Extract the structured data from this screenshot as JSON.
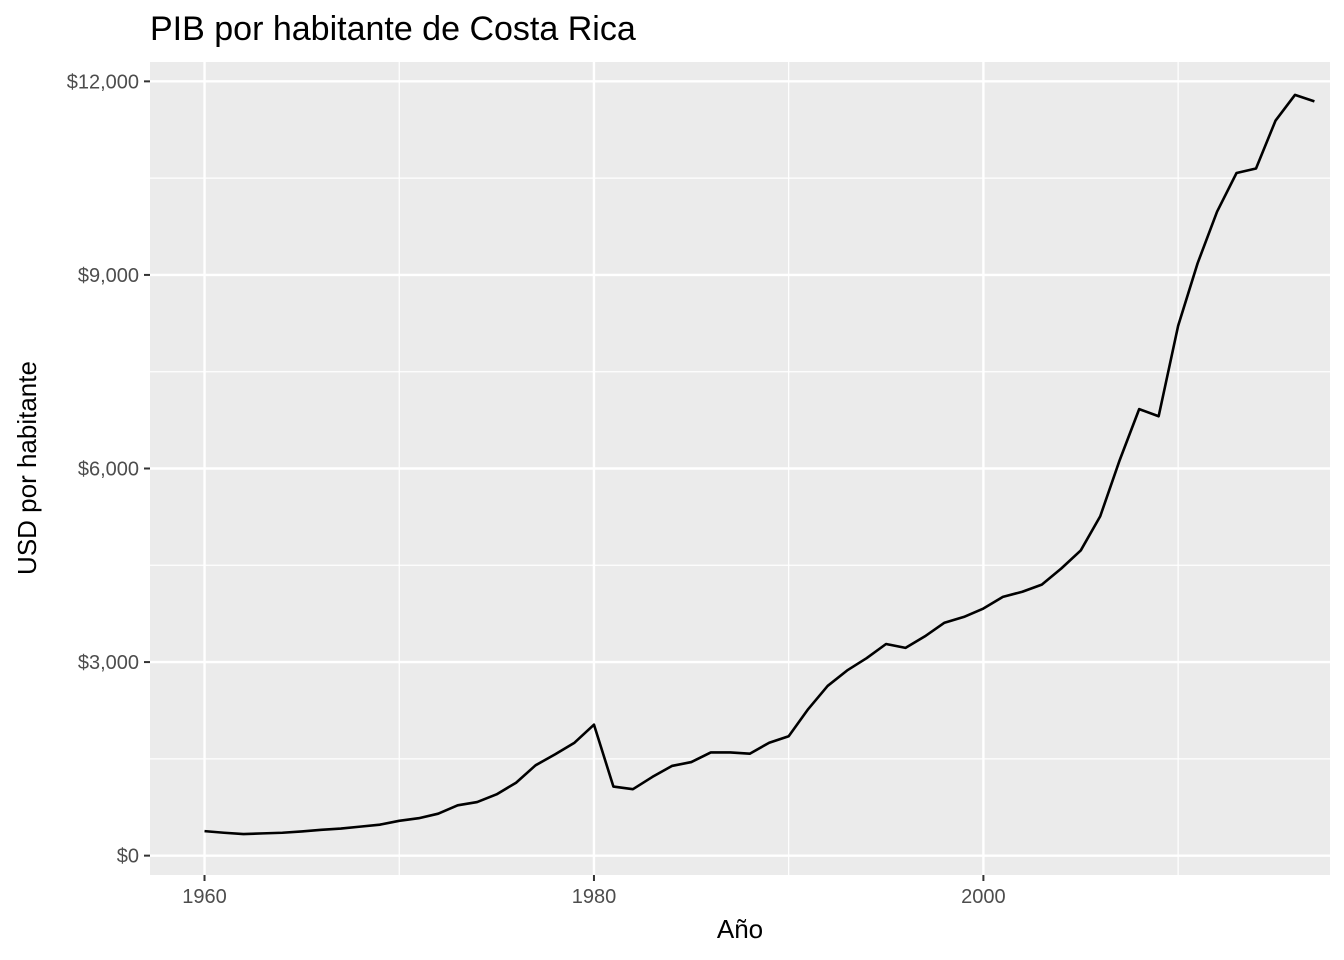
{
  "chart_data": {
    "type": "line",
    "title": "PIB por habitante de Costa Rica",
    "xlabel": "Año",
    "ylabel": "USD por habitante",
    "xlim": [
      1957.2,
      2017.8
    ],
    "ylim": [
      -300,
      12300
    ],
    "x_ticks": [
      1960,
      1980,
      2000
    ],
    "x_tick_labels": [
      "1960",
      "1980",
      "2000"
    ],
    "x_minor_ticks": [
      1970,
      1990,
      2010
    ],
    "y_ticks": [
      0,
      3000,
      6000,
      9000,
      12000
    ],
    "y_tick_labels": [
      "$0",
      "$3,000",
      "$6,000",
      "$9,000",
      "$12,000"
    ],
    "y_minor_ticks": [
      1500,
      4500,
      7500,
      10500
    ],
    "grid": true,
    "panel_color": "#ebebeb",
    "grid_color": "#ffffff",
    "line_color": "#000000",
    "series": [
      {
        "x": [
          1960,
          1961,
          1962,
          1963,
          1964,
          1965,
          1966,
          1967,
          1968,
          1969,
          1970,
          1971,
          1972,
          1973,
          1974,
          1975,
          1976,
          1977,
          1978,
          1979,
          1980,
          1981,
          1982,
          1983,
          1984,
          1985,
          1986,
          1987,
          1988,
          1989,
          1990,
          1991,
          1992,
          1993,
          1994,
          1995,
          1996,
          1997,
          1998,
          1999,
          2000,
          2001,
          2002,
          2003,
          2004,
          2005,
          2006,
          2007,
          2008,
          2009,
          2010,
          2011,
          2012,
          2013,
          2014,
          2015,
          2016,
          2017
        ],
        "values": [
          380,
          355,
          335,
          345,
          355,
          375,
          400,
          420,
          450,
          480,
          540,
          580,
          650,
          780,
          830,
          950,
          1130,
          1400,
          1570,
          1750,
          2030,
          1070,
          1030,
          1220,
          1390,
          1450,
          1600,
          1600,
          1580,
          1750,
          1850,
          2270,
          2630,
          2870,
          3060,
          3280,
          3220,
          3400,
          3610,
          3700,
          3830,
          4010,
          4090,
          4200,
          4450,
          4730,
          5260,
          6130,
          6920,
          6810,
          8210,
          9180,
          9980,
          10580,
          10650,
          11390,
          11790,
          11690
        ]
      }
    ]
  }
}
